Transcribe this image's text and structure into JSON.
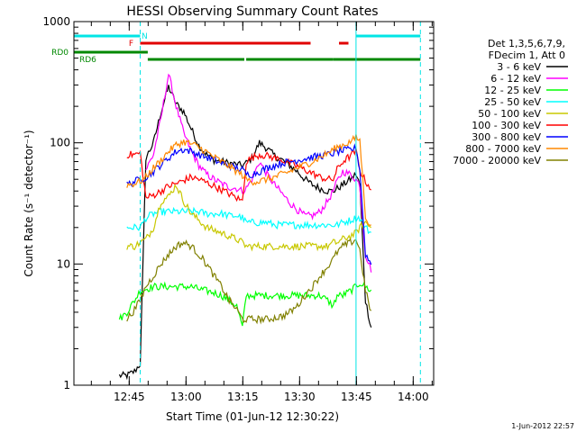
{
  "chart_data": {
    "type": "line",
    "title": "HESSI Observing Summary Count Rates",
    "xlabel": "Start Time (01-Jun-12 12:30:22)",
    "ylabel": "Count Rate (s⁻¹ detector⁻¹)",
    "x_unit": "minutes after 12:30:22",
    "xlim": [
      0,
      95
    ],
    "ylim": [
      1,
      1000
    ],
    "y_scale": "log",
    "x_ticks": [
      {
        "value": 14.6,
        "label": "12:45"
      },
      {
        "value": 29.6,
        "label": "13:00"
      },
      {
        "value": 44.6,
        "label": "13:15"
      },
      {
        "value": 59.6,
        "label": "13:30"
      },
      {
        "value": 74.6,
        "label": "13:45"
      },
      {
        "value": 89.6,
        "label": "14:00"
      }
    ],
    "y_ticks": [
      {
        "value": 1,
        "label": "1"
      },
      {
        "value": 10,
        "label": "10"
      },
      {
        "value": 100,
        "label": "100"
      },
      {
        "value": 1000,
        "label": "1000"
      }
    ],
    "legend_header": [
      "Det 1,3,5,6,7,9,",
      "FDecim 1, Att 0"
    ],
    "legend_position": "right",
    "timestamp": "1-Jun-2012 22:57",
    "flags": {
      "N": {
        "label": "N",
        "color": "#00e5e5",
        "segments": [
          [
            0,
            17.5
          ],
          [
            74.5,
            91.5
          ]
        ]
      },
      "F": {
        "label": "F",
        "color": "#e00000",
        "segments": [
          [
            17.5,
            62.5
          ],
          [
            70,
            72.5
          ]
        ]
      },
      "RD0": {
        "label": "RD0",
        "color": "#008800",
        "segments": [
          [
            0,
            19.5
          ]
        ]
      },
      "RD6": {
        "label": "RD6",
        "color": "#008800",
        "segments": [
          [
            19.5,
            45
          ],
          [
            45.5,
            68.5
          ],
          [
            68.5,
            91.5
          ]
        ]
      }
    },
    "vlines": [
      {
        "x": 0,
        "color": "#00e5e5",
        "style": "solid"
      },
      {
        "x": 17.5,
        "color": "#00e5e5",
        "style": "dashed"
      },
      {
        "x": 74.5,
        "color": "#00e5e5",
        "style": "solid"
      },
      {
        "x": 91.5,
        "color": "#00e5e5",
        "style": "dashed"
      }
    ],
    "x": [
      12,
      14,
      16,
      17.5,
      19,
      21,
      23,
      25,
      27,
      29,
      31,
      33,
      35,
      37,
      39,
      41,
      43,
      44.5,
      45.5,
      47,
      49,
      51,
      53,
      55,
      57,
      59,
      61,
      63,
      65,
      67,
      68.5,
      69.5,
      71,
      73,
      74.5,
      75.5,
      77,
      78.5
    ],
    "series": [
      {
        "name": "3 - 6 keV",
        "color": "#000000",
        "values": [
          1.2,
          1.2,
          1.3,
          1.5,
          75,
          100,
          180,
          290,
          210,
          180,
          130,
          95,
          80,
          72,
          70,
          68,
          66,
          65,
          68,
          75,
          100,
          90,
          78,
          72,
          65,
          58,
          50,
          45,
          42,
          40,
          40,
          42,
          45,
          50,
          55,
          45,
          5,
          3
        ]
      },
      {
        "name": "6 - 12 keV",
        "color": "#ff00ff",
        "values": [
          null,
          null,
          null,
          null,
          60,
          80,
          160,
          370,
          200,
          120,
          85,
          65,
          55,
          50,
          46,
          43,
          42,
          40,
          42,
          50,
          70,
          55,
          45,
          38,
          32,
          28,
          25,
          25,
          27,
          33,
          40,
          48,
          58,
          55,
          50,
          45,
          12,
          9
        ]
      },
      {
        "name": "12 - 25 keV",
        "color": "#00ff00",
        "values": [
          3.5,
          4,
          5,
          6,
          6.2,
          6.5,
          6.5,
          6.5,
          6.5,
          6.5,
          6.5,
          6.2,
          6,
          5.8,
          5.5,
          5,
          4.5,
          3,
          5.5,
          5.5,
          5.5,
          5.5,
          5.5,
          5.5,
          5.5,
          5.5,
          5.5,
          5.5,
          5.5,
          5,
          4.5,
          5.5,
          5.5,
          6,
          6.5,
          7,
          6.5,
          6
        ]
      },
      {
        "name": "25 - 50 keV",
        "color": "#00ffff",
        "values": [
          null,
          20,
          20,
          20,
          24,
          26,
          27,
          27,
          27,
          27,
          27,
          27,
          26,
          26,
          26,
          25,
          25,
          24,
          22,
          22,
          22,
          22,
          21,
          21,
          21,
          21,
          21,
          21,
          21,
          21,
          21,
          21,
          22,
          23,
          24,
          24,
          20,
          18
        ]
      },
      {
        "name": "50 - 100 keV",
        "color": "#c8c800",
        "values": [
          null,
          14,
          14,
          15,
          16,
          20,
          33,
          36,
          45,
          33,
          26,
          23,
          20,
          19,
          18,
          17,
          16,
          15,
          14,
          14,
          14,
          14,
          14,
          14,
          14,
          14,
          14,
          14,
          14,
          14,
          15,
          15,
          16,
          17,
          18,
          20,
          22,
          20
        ]
      },
      {
        "name": "100 - 300 keV",
        "color": "#ff0000",
        "values": [
          null,
          80,
          80,
          82,
          35,
          37,
          40,
          44,
          46,
          49,
          52,
          50,
          47,
          44,
          41,
          38,
          35,
          33,
          70,
          75,
          80,
          78,
          75,
          72,
          68,
          64,
          60,
          56,
          52,
          50,
          50,
          60,
          70,
          78,
          85,
          60,
          48,
          42
        ]
      },
      {
        "name": "300 - 800 keV",
        "color": "#0000ff",
        "values": [
          null,
          45,
          48,
          50,
          52,
          58,
          66,
          75,
          85,
          88,
          85,
          80,
          76,
          72,
          68,
          65,
          62,
          60,
          55,
          55,
          58,
          62,
          65,
          68,
          70,
          72,
          74,
          76,
          78,
          80,
          82,
          84,
          86,
          88,
          90,
          60,
          12,
          10
        ]
      },
      {
        "name": "800 - 7000 keV",
        "color": "#ff8800",
        "values": [
          null,
          45,
          46,
          48,
          52,
          62,
          72,
          85,
          96,
          102,
          98,
          92,
          84,
          76,
          70,
          64,
          58,
          54,
          50,
          48,
          48,
          50,
          52,
          55,
          58,
          62,
          66,
          70,
          76,
          82,
          88,
          92,
          96,
          102,
          110,
          105,
          25,
          20
        ]
      },
      {
        "name": "7000 - 20000 keV",
        "color": "#808000",
        "values": [
          null,
          3.5,
          4.2,
          5,
          6.5,
          8,
          10,
          12,
          14,
          15,
          14,
          12,
          10,
          8,
          6.5,
          5,
          4.2,
          3.5,
          3.5,
          3.5,
          3.5,
          3.5,
          3.6,
          3.7,
          4,
          4.5,
          5.5,
          6.5,
          8,
          9.5,
          11,
          12.5,
          14,
          15,
          16,
          13,
          6,
          4
        ]
      }
    ]
  }
}
